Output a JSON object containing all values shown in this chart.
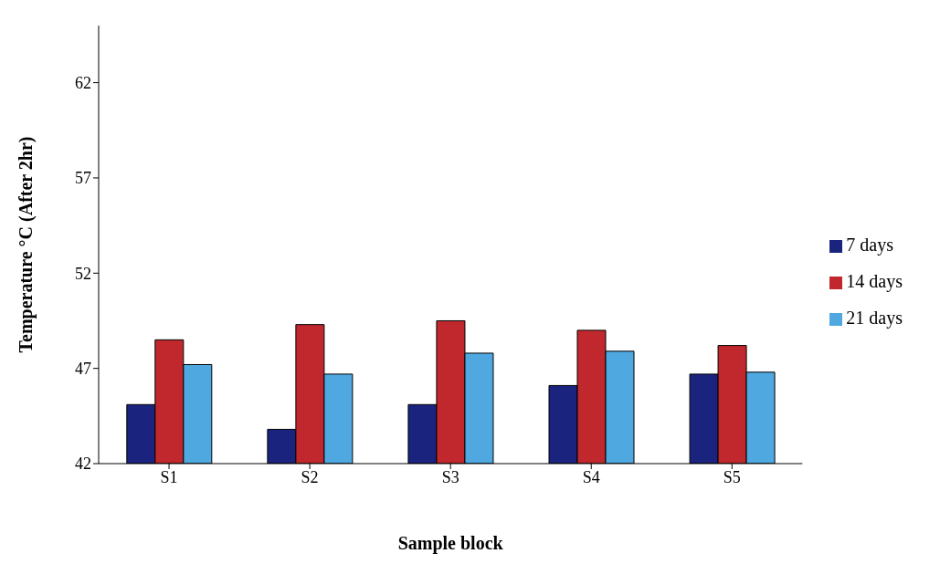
{
  "chart_data": {
    "type": "bar",
    "xlabel": "Sample block",
    "ylabel": "Temperature °C (After 2hr)",
    "categories": [
      "S1",
      "S2",
      "S3",
      "S4",
      "S5"
    ],
    "series": [
      {
        "name": "7 days",
        "color": "#1a237e",
        "values": [
          45.1,
          43.8,
          45.1,
          46.1,
          46.7
        ]
      },
      {
        "name": "14 days",
        "color": "#c0282d",
        "values": [
          48.5,
          49.3,
          49.5,
          49.0,
          48.2
        ]
      },
      {
        "name": "21 days",
        "color": "#4fa8e0",
        "values": [
          47.2,
          46.7,
          47.8,
          47.9,
          46.8
        ]
      }
    ],
    "ylim": [
      42,
      65
    ],
    "yticks": [
      42,
      47,
      52,
      57,
      62
    ],
    "grid": false,
    "legend": "right"
  }
}
